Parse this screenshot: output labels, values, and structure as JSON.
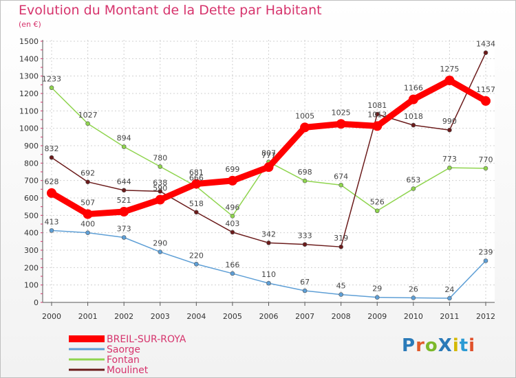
{
  "title": "Evolution du Montant de la Dette par Habitant",
  "unit": "(en €)",
  "logo": {
    "text": "ProXiti",
    "colors": [
      "#2a7ab8",
      "#e05a2a",
      "#7cb82a",
      "#2a7ab8",
      "#d4b800",
      "#2a9ad4",
      "#e0502a"
    ]
  },
  "chart_data": {
    "type": "line",
    "title": "Evolution du Montant de la Dette par Habitant",
    "xlabel": "",
    "ylabel": "(en €)",
    "x": [
      "2000",
      "2001",
      "2002",
      "2003",
      "2004",
      "2005",
      "2006",
      "2007",
      "2008",
      "2009",
      "2010",
      "2011",
      "2012"
    ],
    "ylim": [
      0,
      1500
    ],
    "yticks": [
      0,
      100,
      200,
      300,
      400,
      500,
      600,
      700,
      800,
      900,
      1000,
      1100,
      1200,
      1300,
      1400,
      1500
    ],
    "grid": true,
    "legend_position": "bottom-left",
    "series": [
      {
        "name": "BREIL-SUR-ROYA",
        "color": "#ff0000",
        "values": [
          628,
          507,
          521,
          590,
          681,
          699,
          777,
          1005,
          1025,
          1013,
          1166,
          1275,
          1157
        ]
      },
      {
        "name": "Saorge",
        "color": "#5e9fd6",
        "values": [
          413,
          400,
          373,
          290,
          220,
          166,
          110,
          67,
          45,
          29,
          26,
          24,
          239
        ]
      },
      {
        "name": "Fontan",
        "color": "#8fd44e",
        "values": [
          1233,
          1027,
          894,
          780,
          666,
          496,
          807,
          698,
          674,
          526,
          653,
          773,
          770
        ]
      },
      {
        "name": "Moulinet",
        "color": "#6b1b1b",
        "values": [
          832,
          692,
          644,
          638,
          518,
          403,
          342,
          333,
          319,
          1081,
          1018,
          990,
          1434
        ]
      }
    ]
  }
}
